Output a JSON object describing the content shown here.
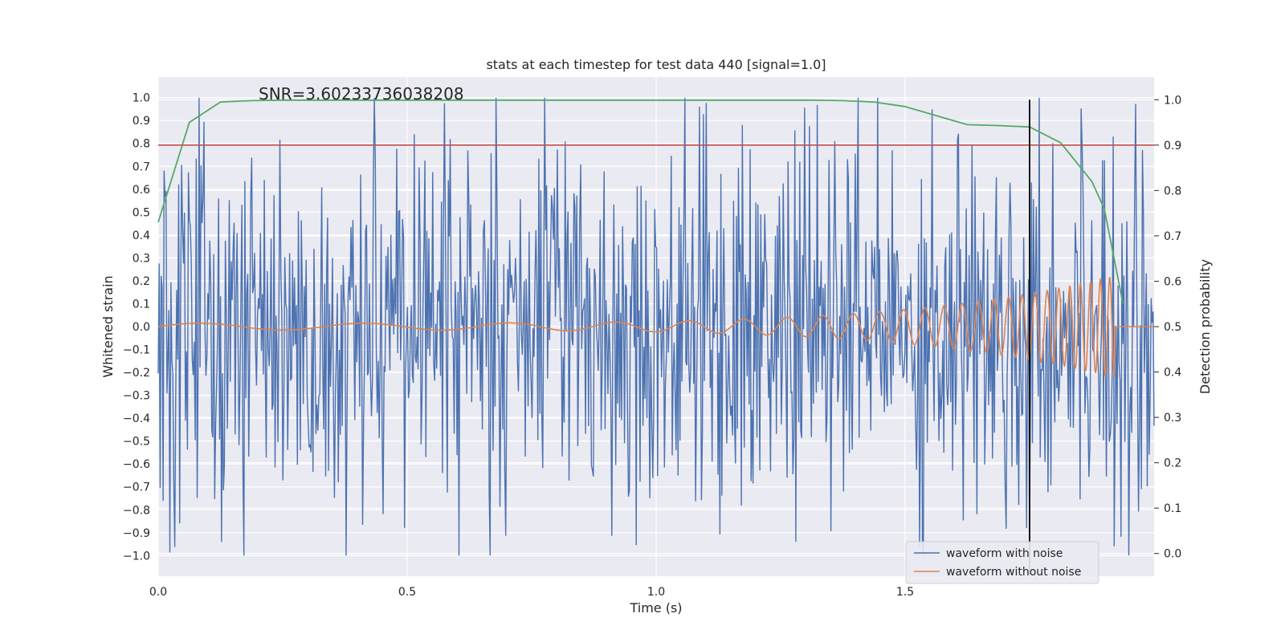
{
  "chart_data": {
    "type": "line",
    "title": "stats at each timestep for test data 440 [signal=1.0]",
    "xlabel": "Time (s)",
    "ylabel": "Whitened strain",
    "y2label": "Detection probability",
    "annotation": "SNR=3.60233736038208",
    "xlim": [
      0.0,
      2.0
    ],
    "ylim": [
      -1.09,
      1.09
    ],
    "y2lim": [
      -0.05,
      1.05
    ],
    "x_ticks": [
      0.0,
      0.5,
      1.0,
      1.5
    ],
    "x_tick_labels": [
      "0.0",
      "0.5",
      "1.0",
      "1.5"
    ],
    "y_ticks": [
      1.0,
      0.9,
      0.8,
      0.7,
      0.6,
      0.5,
      0.4,
      0.3,
      0.2,
      0.1,
      0.0,
      -0.1,
      -0.2,
      -0.3,
      -0.4,
      -0.5,
      -0.6,
      -0.7,
      -0.8,
      -0.9,
      -1.0
    ],
    "y_tick_labels": [
      "1.0",
      "0.9",
      "0.8",
      "0.7",
      "0.6",
      "0.5",
      "0.4",
      "0.3",
      "0.2",
      "0.1",
      "0.0",
      "−0.1",
      "−0.2",
      "−0.3",
      "−0.4",
      "−0.5",
      "−0.6",
      "−0.7",
      "−0.8",
      "−0.9",
      "−1.0"
    ],
    "y2_ticks": [
      1.0,
      0.9,
      0.8,
      0.7,
      0.6,
      0.5,
      0.4,
      0.3,
      0.2,
      0.1,
      0.0
    ],
    "y2_tick_labels": [
      "1.0",
      "0.9",
      "0.8",
      "0.7",
      "0.6",
      "0.5",
      "0.4",
      "0.3",
      "0.2",
      "0.1",
      "0.0"
    ],
    "threshold": {
      "value": 0.9,
      "axis": "right",
      "color": "#c44e52"
    },
    "detection_time": {
      "x": 1.75,
      "color": "#000000"
    },
    "grid": true,
    "legend_position": "lower-right",
    "series": [
      {
        "name": "waveform with noise",
        "axis": "left",
        "color": "#4c72b0",
        "sample_count": 1024,
        "envelope": [
          -1.0,
          1.0
        ],
        "note": "dense noise trace; drawn from a seeded generator within the envelope"
      },
      {
        "name": "waveform without noise",
        "axis": "left",
        "color": "#dd8452",
        "x_end": 1.92,
        "envelope_start": 0.015,
        "envelope_end": 0.22,
        "cycles_start": 3.0,
        "cycles_end": 55.0
      },
      {
        "name": "detection probability",
        "axis": "right",
        "color": "#55a868",
        "x": [
          0.0,
          0.0625,
          0.125,
          0.1875,
          0.25,
          0.3125,
          0.375,
          0.4375,
          0.5,
          0.5625,
          0.625,
          0.6875,
          0.75,
          0.8125,
          0.875,
          0.9375,
          1.0,
          1.0625,
          1.125,
          1.1875,
          1.25,
          1.3125,
          1.375,
          1.4375,
          1.5,
          1.5625,
          1.625,
          1.6875,
          1.75,
          1.8125,
          1.875,
          1.9,
          1.9375
        ],
        "values": [
          0.73,
          0.95,
          0.995,
          0.998,
          0.999,
          0.999,
          0.999,
          0.999,
          0.999,
          0.999,
          0.999,
          0.999,
          0.999,
          0.999,
          0.999,
          0.999,
          0.999,
          0.999,
          0.999,
          0.999,
          0.999,
          0.999,
          0.998,
          0.995,
          0.985,
          0.965,
          0.945,
          0.943,
          0.94,
          0.905,
          0.82,
          0.76,
          0.55
        ]
      }
    ],
    "legend": [
      "waveform with noise",
      "waveform without noise"
    ]
  }
}
